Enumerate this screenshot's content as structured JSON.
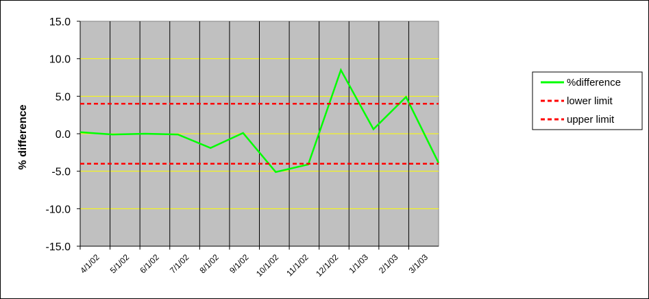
{
  "chart_data": {
    "type": "line",
    "title": "",
    "xlabel": "",
    "ylabel": "% difference",
    "ylim": [
      -15,
      15
    ],
    "ytick_step": 5,
    "ytick_labels": [
      "15.0",
      "10.0",
      "5.0",
      "0.0",
      "-5.0",
      "-10.0",
      "-15.0"
    ],
    "categories": [
      "4/1/02",
      "5/1/02",
      "6/1/02",
      "7/1/02",
      "8/1/02",
      "9/1/02",
      "10/1/02",
      "11/1/02",
      "12/1/02",
      "1/1/03",
      "2/1/03",
      "3/1/03"
    ],
    "grid": true,
    "plot_background": "#c0c0c0",
    "gridline_color": "#ffff00",
    "legend_position": "right",
    "series": [
      {
        "name": "%difference",
        "color": "#00ff00",
        "style": "solid",
        "values": [
          0.2,
          -0.1,
          0.0,
          -0.1,
          -1.9,
          0.1,
          -5.1,
          -4.1,
          8.5,
          0.6,
          4.9,
          -3.9
        ]
      },
      {
        "name": "lower limit",
        "color": "#ff0000",
        "style": "dashed",
        "values": [
          4,
          4,
          4,
          4,
          4,
          4,
          4,
          4,
          4,
          4,
          4,
          4
        ]
      },
      {
        "name": "upper limit",
        "color": "#ff0000",
        "style": "dashed",
        "values": [
          -4,
          -4,
          -4,
          -4,
          -4,
          -4,
          -4,
          -4,
          -4,
          -4,
          -4,
          -4
        ]
      }
    ]
  }
}
